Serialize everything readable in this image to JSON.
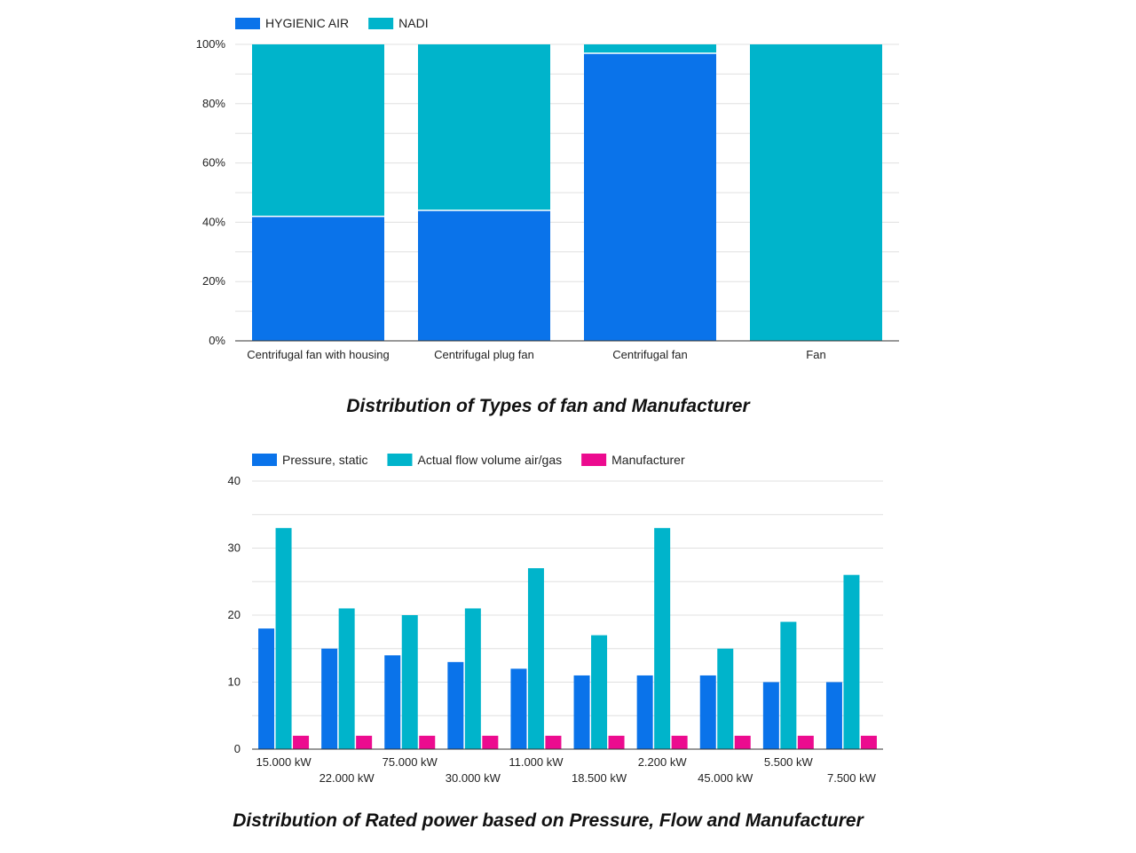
{
  "chart_data": [
    {
      "type": "bar",
      "stacked": true,
      "normalized": true,
      "caption": "Distribution of Types of fan and Manufacturer",
      "categories": [
        "Centrifugal fan with housing",
        "Centrifugal plug fan",
        "Centrifugal fan",
        "Fan"
      ],
      "series": [
        {
          "name": "HYGIENIC AIR",
          "color": "#0a73ea",
          "values": [
            42,
            44,
            97,
            0
          ]
        },
        {
          "name": "NADI",
          "color": "#00b4cb",
          "values": [
            58,
            56,
            3,
            100
          ]
        }
      ],
      "ylim": [
        0,
        100
      ],
      "yticks": [
        "0%",
        "20%",
        "40%",
        "60%",
        "80%",
        "100%"
      ],
      "legend_position": "top-left",
      "grid": true
    },
    {
      "type": "bar",
      "stacked": false,
      "caption": "Distribution of Rated power based on Pressure, Flow and Manufacturer",
      "categories": [
        "15.000 kW",
        "22.000 kW",
        "75.000 kW",
        "30.000 kW",
        "11.000 kW",
        "18.500 kW",
        "2.200 kW",
        "45.000 kW",
        "5.500 kW",
        "7.500 kW"
      ],
      "series": [
        {
          "name": "Pressure, static",
          "color": "#0a73ea",
          "values": [
            18,
            15,
            14,
            13,
            12,
            11,
            11,
            11,
            10,
            10
          ]
        },
        {
          "name": "Actual flow volume air/gas",
          "color": "#00b4cb",
          "values": [
            33,
            21,
            20,
            21,
            27,
            17,
            33,
            15,
            19,
            26
          ]
        },
        {
          "name": "Manufacturer",
          "color": "#ec0b8f",
          "values": [
            2,
            2,
            2,
            2,
            2,
            2,
            2,
            2,
            2,
            2
          ]
        }
      ],
      "ylim": [
        0,
        40
      ],
      "yticks": [
        "0",
        "10",
        "20",
        "30",
        "40"
      ],
      "legend_position": "top-left",
      "grid": true
    }
  ]
}
